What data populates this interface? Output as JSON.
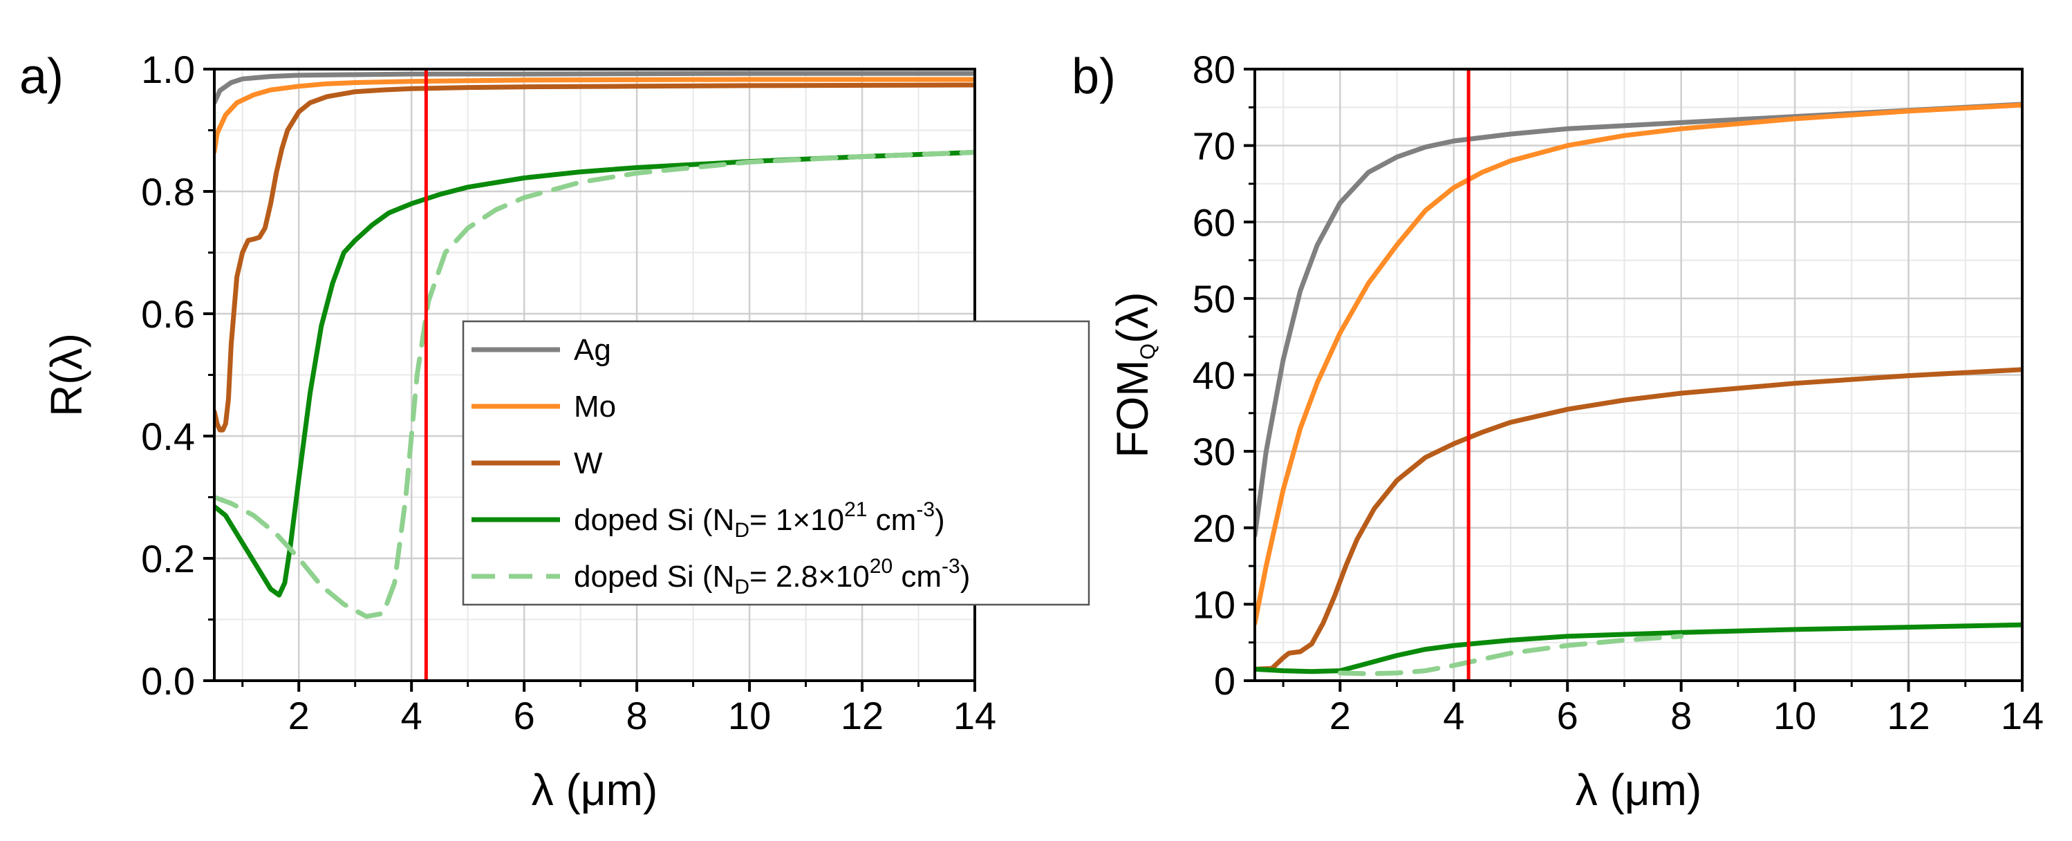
{
  "chart_data": [
    {
      "type": "line",
      "panel_label": "a)",
      "xlabel": "λ (μm)",
      "ylabel": "R(λ)",
      "xlim": [
        0.5,
        14
      ],
      "ylim": [
        0.0,
        1.0
      ],
      "xticks": [
        2,
        4,
        6,
        8,
        10,
        12,
        14
      ],
      "yticks": [
        0.0,
        0.2,
        0.4,
        0.6,
        0.8,
        1.0
      ],
      "xtick_labels": [
        "2",
        "4",
        "6",
        "8",
        "10",
        "12",
        "14"
      ],
      "ytick_labels": [
        "0.0",
        "0.2",
        "0.4",
        "0.6",
        "0.8",
        "1.0"
      ],
      "grid": true,
      "vline_x": 4.26,
      "vline_color": "#ff0000",
      "legend_position": "center-right",
      "legend": [
        {
          "series": "Ag",
          "parts": [
            {
              "t": "Ag"
            }
          ]
        },
        {
          "series": "Mo",
          "parts": [
            {
              "t": "Mo"
            }
          ]
        },
        {
          "series": "W",
          "parts": [
            {
              "t": "W"
            }
          ]
        },
        {
          "series": "doped Si 1e21",
          "parts": [
            {
              "t": "doped Si (N"
            },
            {
              "t": "D",
              "s": "sub"
            },
            {
              "t": "= 1×10"
            },
            {
              "t": "21",
              "s": "sup"
            },
            {
              "t": " cm"
            },
            {
              "t": "-3",
              "s": "sup"
            },
            {
              "t": ")"
            }
          ]
        },
        {
          "series": "doped Si 2.8e20",
          "parts": [
            {
              "t": "doped Si (N"
            },
            {
              "t": "D",
              "s": "sub"
            },
            {
              "t": "= 2.8×10"
            },
            {
              "t": "20",
              "s": "sup"
            },
            {
              "t": " cm"
            },
            {
              "t": "-3",
              "s": "sup"
            },
            {
              "t": ")"
            }
          ]
        }
      ],
      "series": [
        {
          "name": "Ag",
          "color": "#808080",
          "dash": false,
          "x": [
            0.5,
            0.6,
            0.8,
            1.0,
            1.5,
            2.0,
            3.0,
            4.0,
            6.0,
            10.0,
            14.0
          ],
          "y": [
            0.945,
            0.965,
            0.978,
            0.984,
            0.988,
            0.99,
            0.991,
            0.992,
            0.992,
            0.993,
            0.993
          ]
        },
        {
          "name": "Mo",
          "color": "#ff8c26",
          "dash": false,
          "x": [
            0.5,
            0.55,
            0.7,
            0.9,
            1.2,
            1.5,
            2.0,
            2.5,
            3.0,
            4.0,
            6.0,
            10.0,
            14.0
          ],
          "y": [
            0.865,
            0.895,
            0.925,
            0.945,
            0.958,
            0.966,
            0.972,
            0.976,
            0.978,
            0.98,
            0.982,
            0.983,
            0.983
          ]
        },
        {
          "name": "W",
          "color": "#b85c1a",
          "dash": false,
          "x": [
            0.5,
            0.55,
            0.6,
            0.65,
            0.7,
            0.75,
            0.8,
            0.9,
            1.0,
            1.1,
            1.2,
            1.3,
            1.4,
            1.5,
            1.6,
            1.7,
            1.8,
            2.0,
            2.2,
            2.5,
            3.0,
            3.5,
            4.0,
            5.0,
            6.0,
            8.0,
            10.0,
            14.0
          ],
          "y": [
            0.44,
            0.42,
            0.41,
            0.41,
            0.42,
            0.46,
            0.55,
            0.66,
            0.7,
            0.72,
            0.722,
            0.725,
            0.74,
            0.78,
            0.83,
            0.87,
            0.9,
            0.93,
            0.945,
            0.955,
            0.963,
            0.966,
            0.968,
            0.97,
            0.971,
            0.972,
            0.973,
            0.974
          ]
        },
        {
          "name": "doped Si 1e21",
          "color": "#0a8a0a",
          "dash": false,
          "x": [
            0.5,
            0.7,
            0.9,
            1.1,
            1.3,
            1.5,
            1.65,
            1.75,
            1.85,
            2.0,
            2.2,
            2.4,
            2.6,
            2.8,
            3.0,
            3.3,
            3.6,
            4.0,
            4.5,
            5.0,
            6.0,
            7.0,
            8.0,
            10.0,
            12.0,
            14.0
          ],
          "y": [
            0.285,
            0.27,
            0.24,
            0.21,
            0.18,
            0.15,
            0.14,
            0.16,
            0.22,
            0.33,
            0.47,
            0.58,
            0.65,
            0.7,
            0.72,
            0.745,
            0.765,
            0.78,
            0.795,
            0.807,
            0.822,
            0.832,
            0.839,
            0.849,
            0.857,
            0.864
          ]
        },
        {
          "name": "doped Si 2.8e20",
          "color": "#8fd18f",
          "dash": true,
          "x": [
            0.5,
            0.8,
            1.2,
            1.6,
            2.0,
            2.4,
            2.8,
            3.2,
            3.5,
            3.7,
            3.9,
            4.1,
            4.3,
            4.6,
            5.0,
            5.5,
            6.0,
            7.0,
            8.0,
            10.0,
            12.0,
            14.0
          ],
          "y": [
            0.3,
            0.29,
            0.27,
            0.24,
            0.2,
            0.155,
            0.125,
            0.105,
            0.11,
            0.16,
            0.3,
            0.5,
            0.62,
            0.7,
            0.74,
            0.77,
            0.79,
            0.815,
            0.83,
            0.848,
            0.857,
            0.864
          ]
        }
      ]
    },
    {
      "type": "line",
      "panel_label": "b)",
      "xlabel": "λ (μm)",
      "ylabel_main": "FOM",
      "ylabel_sub": "Q",
      "ylabel_end": "(λ)",
      "xlim": [
        0.5,
        14
      ],
      "ylim": [
        0,
        80
      ],
      "xticks": [
        2,
        4,
        6,
        8,
        10,
        12,
        14
      ],
      "yticks": [
        0,
        10,
        20,
        30,
        40,
        50,
        60,
        70,
        80
      ],
      "xtick_labels": [
        "2",
        "4",
        "6",
        "8",
        "10",
        "12",
        "14"
      ],
      "ytick_labels": [
        "0",
        "10",
        "20",
        "30",
        "40",
        "50",
        "60",
        "70",
        "80"
      ],
      "grid": true,
      "vline_x": 4.26,
      "vline_color": "#ff0000",
      "series": [
        {
          "name": "Ag",
          "color": "#808080",
          "dash": false,
          "x": [
            0.5,
            0.7,
            1.0,
            1.3,
            1.6,
            2.0,
            2.5,
            3.0,
            3.5,
            4.0,
            5.0,
            6.0,
            8.0,
            10.0,
            12.0,
            14.0
          ],
          "y": [
            19,
            30,
            42,
            51,
            57,
            62.5,
            66.5,
            68.5,
            69.8,
            70.6,
            71.5,
            72.2,
            73.0,
            73.8,
            74.6,
            75.4
          ]
        },
        {
          "name": "Mo",
          "color": "#ff8c26",
          "dash": false,
          "x": [
            0.5,
            0.7,
            1.0,
            1.3,
            1.6,
            2.0,
            2.5,
            3.0,
            3.5,
            4.0,
            4.5,
            5.0,
            6.0,
            7.0,
            8.0,
            10.0,
            12.0,
            14.0
          ],
          "y": [
            7.5,
            15,
            25,
            33,
            39,
            45.5,
            52,
            57,
            61.5,
            64.5,
            66.5,
            68,
            70,
            71.3,
            72.2,
            73.5,
            74.5,
            75.3
          ]
        },
        {
          "name": "W",
          "color": "#b85c1a",
          "dash": false,
          "x": [
            0.5,
            0.8,
            1.0,
            1.1,
            1.3,
            1.5,
            1.7,
            1.9,
            2.1,
            2.3,
            2.6,
            3.0,
            3.5,
            4.0,
            4.5,
            5.0,
            6.0,
            7.0,
            8.0,
            10.0,
            12.0,
            14.0
          ],
          "y": [
            1.5,
            1.6,
            3,
            3.6,
            3.8,
            4.8,
            7.5,
            11,
            15,
            18.5,
            22.5,
            26.2,
            29.2,
            31,
            32.5,
            33.8,
            35.5,
            36.7,
            37.6,
            38.9,
            39.9,
            40.7
          ]
        },
        {
          "name": "doped Si 1e21",
          "color": "#0a8a0a",
          "dash": false,
          "x": [
            0.5,
            1.0,
            1.5,
            2.0,
            2.5,
            3.0,
            3.5,
            4.0,
            5.0,
            6.0,
            8.0,
            10.0,
            12.0,
            14.0
          ],
          "y": [
            1.5,
            1.3,
            1.2,
            1.3,
            2.3,
            3.3,
            4.1,
            4.6,
            5.3,
            5.8,
            6.3,
            6.7,
            7.0,
            7.3
          ]
        },
        {
          "name": "doped Si 2.8e20",
          "color": "#8fd18f",
          "dash": true,
          "x": [
            2.0,
            2.5,
            3.0,
            3.5,
            4.0,
            4.5,
            5.0,
            6.0,
            7.0,
            8.0
          ],
          "y": [
            1.0,
            0.9,
            1.0,
            1.3,
            2.0,
            2.8,
            3.6,
            4.6,
            5.3,
            5.8
          ]
        }
      ]
    }
  ]
}
